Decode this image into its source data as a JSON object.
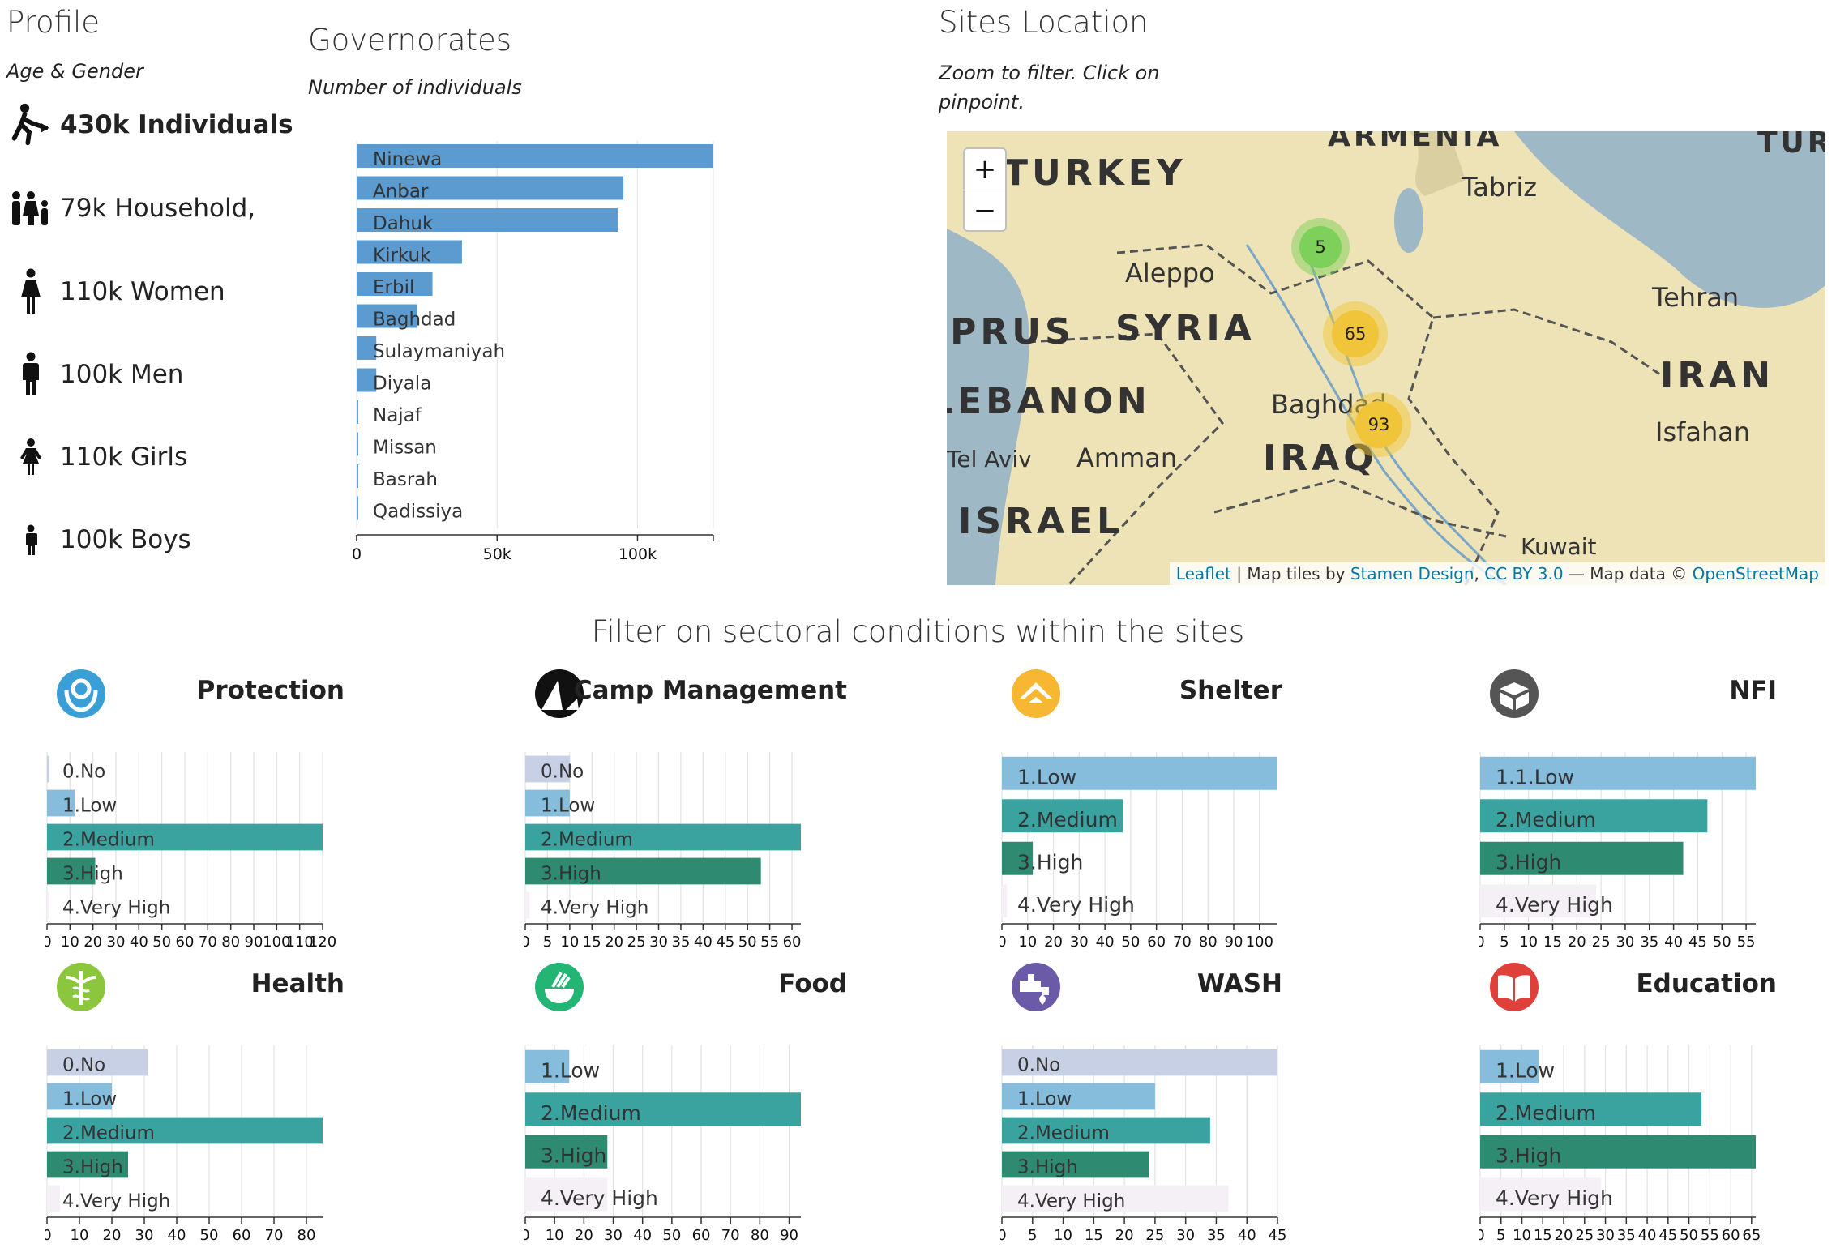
{
  "profile": {
    "title": "Profile",
    "subtitle": "Age & Gender",
    "items": [
      {
        "icon": "person-walking-icon",
        "text": "430k Individuals"
      },
      {
        "icon": "family-icon",
        "text": "79k Household,"
      },
      {
        "icon": "woman-icon",
        "text": "110k Women"
      },
      {
        "icon": "man-icon",
        "text": "100k Men"
      },
      {
        "icon": "girl-icon",
        "text": "110k Girls"
      },
      {
        "icon": "boy-icon",
        "text": "100k Boys"
      }
    ]
  },
  "governorates": {
    "title": "Governorates",
    "subtitle": "Number of individuals",
    "chart_data": {
      "type": "bar",
      "orientation": "horizontal",
      "title": "Governorates",
      "xlabel": "Number of individuals",
      "categories": [
        "Ninewa",
        "Anbar",
        "Dahuk",
        "Kirkuk",
        "Erbil",
        "Baghdad",
        "Sulaymaniyah",
        "Diyala",
        "Najaf",
        "Missan",
        "Basrah",
        "Qadissiya"
      ],
      "values": [
        127000,
        95000,
        93000,
        37500,
        27000,
        21500,
        7000,
        7000,
        500,
        500,
        300,
        100
      ],
      "xlim": [
        0,
        127000
      ],
      "xticks": [
        0,
        50000,
        100000
      ],
      "xtick_labels": [
        "0",
        "50k",
        "100k"
      ],
      "color": "#5b9bd0"
    }
  },
  "map": {
    "title": "Sites Location",
    "subtitle": "Zoom to filter. Click on pinpoint.",
    "zoom_in": "+",
    "zoom_out": "−",
    "labels": [
      "TURKEY",
      "ARMENIA",
      "Tabriz",
      "Aleppo",
      "SYRIA",
      "Tehran",
      "CYPRUS",
      "IRAN",
      "LEBANON",
      "Baghdad",
      "Isfahan",
      "Tel Aviv",
      "Amman",
      "IRAQ",
      "ISRAEL",
      "Kuwait",
      "TUR"
    ],
    "clusters": [
      {
        "count": "5",
        "color": "#7dd05a"
      },
      {
        "count": "65",
        "color": "#f0c53a"
      },
      {
        "count": "93",
        "color": "#f0c53a"
      }
    ],
    "attribution": {
      "leaflet": "Leaflet",
      "tiles_text": " | Map tiles by ",
      "stamen": "Stamen Design",
      "sep": ", ",
      "license": "CC BY 3.0",
      "data_text": " — Map data © ",
      "osm": "OpenStreetMap"
    }
  },
  "sectors_heading": "Filter on sectoral conditions within the sites",
  "sectors": [
    {
      "name": "Protection",
      "icon": "protection-icon",
      "icon_color": "#3a9fd6",
      "chart_data": {
        "type": "bar",
        "orientation": "horizontal",
        "categories": [
          "0.No",
          "1.Low",
          "2.Medium",
          "3.High",
          "4.Very High"
        ],
        "values": [
          1,
          12,
          120,
          21,
          1
        ],
        "xlim": [
          0,
          120
        ],
        "xticks": [
          0,
          10,
          20,
          30,
          40,
          50,
          60,
          70,
          80,
          90,
          100,
          110,
          120
        ]
      }
    },
    {
      "name": "Camp Management",
      "icon": "camp-management-icon",
      "icon_color": "#111111",
      "chart_data": {
        "type": "bar",
        "orientation": "horizontal",
        "categories": [
          "0.No",
          "1.Low",
          "2.Medium",
          "3.High",
          "4.Very High"
        ],
        "values": [
          10,
          10,
          62,
          53,
          1
        ],
        "xlim": [
          0,
          62
        ],
        "xticks": [
          0,
          5,
          10,
          15,
          20,
          25,
          30,
          35,
          40,
          45,
          50,
          55,
          60
        ]
      }
    },
    {
      "name": "Shelter",
      "icon": "shelter-icon",
      "icon_color": "#f7b733",
      "chart_data": {
        "type": "bar",
        "orientation": "horizontal",
        "categories": [
          "1.Low",
          "2.Medium",
          "3.High",
          "4.Very High"
        ],
        "values": [
          107,
          47,
          12,
          2
        ],
        "xlim": [
          0,
          107
        ],
        "xticks": [
          0,
          10,
          20,
          30,
          40,
          50,
          60,
          70,
          80,
          90,
          100
        ]
      }
    },
    {
      "name": "NFI",
      "icon": "nfi-icon",
      "icon_color": "#555555",
      "chart_data": {
        "type": "bar",
        "orientation": "horizontal",
        "categories": [
          "1.1.Low",
          "2.Medium",
          "3.High",
          "4.Very High"
        ],
        "values": [
          57,
          47,
          42,
          24
        ],
        "xlim": [
          0,
          57
        ],
        "xticks": [
          0,
          5,
          10,
          15,
          20,
          25,
          30,
          35,
          40,
          45,
          50,
          55
        ]
      }
    },
    {
      "name": "Health",
      "icon": "health-icon",
      "icon_color": "#8cc63f",
      "chart_data": {
        "type": "bar",
        "orientation": "horizontal",
        "categories": [
          "0.No",
          "1.Low",
          "2.Medium",
          "3.High",
          "4.Very High"
        ],
        "values": [
          31,
          20,
          85,
          25,
          4
        ],
        "xlim": [
          0,
          85
        ],
        "xticks": [
          0,
          10,
          20,
          30,
          40,
          50,
          60,
          70,
          80
        ]
      }
    },
    {
      "name": "Food",
      "icon": "food-icon",
      "icon_color": "#22b573",
      "chart_data": {
        "type": "bar",
        "orientation": "horizontal",
        "categories": [
          "1.Low",
          "2.Medium",
          "3.High",
          "4.Very High"
        ],
        "values": [
          15,
          94,
          28,
          28
        ],
        "xlim": [
          0,
          94
        ],
        "xticks": [
          0,
          10,
          20,
          30,
          40,
          50,
          60,
          70,
          80,
          90
        ]
      }
    },
    {
      "name": "WASH",
      "icon": "wash-icon",
      "icon_color": "#6a5aa8",
      "chart_data": {
        "type": "bar",
        "orientation": "horizontal",
        "categories": [
          "0.No",
          "1.Low",
          "2.Medium",
          "3.High",
          "4.Very High"
        ],
        "values": [
          45,
          25,
          34,
          24,
          37
        ],
        "xlim": [
          0,
          45
        ],
        "xticks": [
          0,
          5,
          10,
          15,
          20,
          25,
          30,
          35,
          40,
          45
        ]
      }
    },
    {
      "name": "Education",
      "icon": "education-icon",
      "icon_color": "#e0403a",
      "chart_data": {
        "type": "bar",
        "orientation": "horizontal",
        "categories": [
          "1.Low",
          "2.Medium",
          "3.High",
          "4.Very High"
        ],
        "values": [
          14,
          53,
          66,
          29
        ],
        "xlim": [
          0,
          66
        ],
        "xticks": [
          0,
          5,
          10,
          15,
          20,
          25,
          30,
          35,
          40,
          45,
          50,
          55,
          60,
          65
        ]
      }
    }
  ]
}
